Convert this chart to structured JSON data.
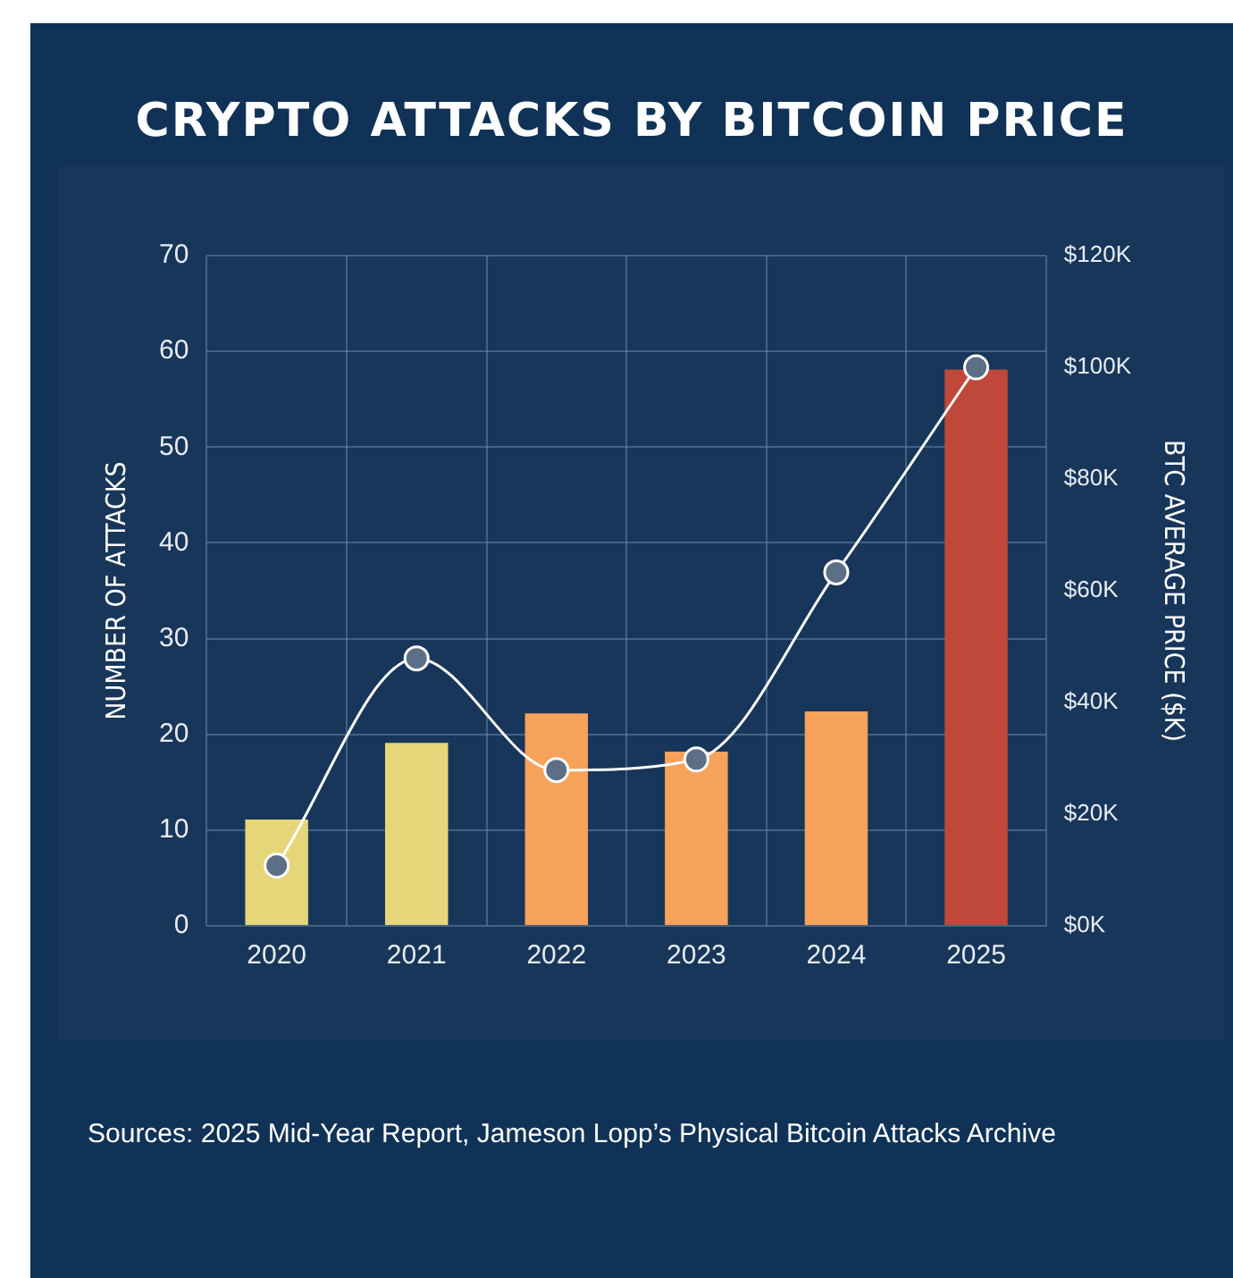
{
  "chart_data": {
    "type": "bar",
    "title": "CRYPTO ATTACKS BY BITCOIN PRICE",
    "ylabel": "NUMBER OF ATTACKS",
    "y2label": "BTC AVERAGE PRICE ($K)",
    "categories": [
      "2020",
      "2021",
      "2022",
      "2023",
      "2024",
      "2025"
    ],
    "series": [
      {
        "colors": [
          "#e6d67a",
          "#e6d67a",
          "#f7a25a",
          "#f7a25a",
          "#f7a25a",
          "#c0483a"
        ],
        "values": [
          11.1,
          19.1,
          22.2,
          18.2,
          22.4,
          58.1
        ]
      },
      {
        "type": "line",
        "axis": "y2",
        "color": "#ffffff",
        "marker": "circle",
        "values": [
          10.8,
          47.9,
          27.9,
          29.8,
          63.3,
          100
        ]
      }
    ],
    "ylim": [
      0,
      70
    ],
    "yticks": [
      0,
      10,
      20,
      30,
      40,
      50,
      60,
      70
    ],
    "y2lim": [
      0,
      120
    ],
    "y2ticks": [
      {
        "value": 0,
        "label": "$0K"
      },
      {
        "value": 20,
        "label": "$20K"
      },
      {
        "value": 40,
        "label": "$40K"
      },
      {
        "value": 60,
        "label": "$60K"
      },
      {
        "value": 80,
        "label": "$80K"
      },
      {
        "value": 100,
        "label": "$100K"
      },
      {
        "value": 120,
        "label": "$120K"
      }
    ],
    "grid": true,
    "legend": false,
    "annotations": [
      "Sources: 2025 Mid-Year Report, Jameson Lopp’s Physical Bitcoin Attacks Archive"
    ]
  }
}
